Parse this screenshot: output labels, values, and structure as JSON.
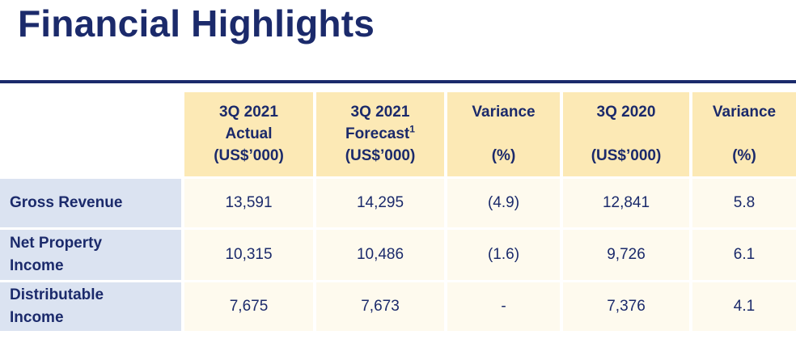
{
  "title": "Financial Highlights",
  "headers": [
    {
      "line1": "3Q 2021",
      "line2": "Actual",
      "line3": "(US$’000)"
    },
    {
      "line1": "3Q 2021",
      "line2": "Forecast",
      "sup": "1",
      "line3": "(US$’000)"
    },
    {
      "line1": "Variance",
      "line3": "(%)"
    },
    {
      "line1": "3Q 2020",
      "line3": "(US$’000)"
    },
    {
      "line1": "Variance",
      "line3": "(%)"
    }
  ],
  "rows": [
    {
      "label1": "Gross Revenue",
      "label2": "",
      "values": [
        "13,591",
        "14,295",
        "(4.9)",
        "12,841",
        "5.8"
      ]
    },
    {
      "label1": "Net Property",
      "label2": "Income",
      "values": [
        "10,315",
        "10,486",
        "(1.6)",
        "9,726",
        "6.1"
      ]
    },
    {
      "label1": "Distributable",
      "label2": "Income",
      "values": [
        "7,675",
        "7,673",
        "-",
        "7,376",
        "4.1"
      ]
    }
  ]
}
